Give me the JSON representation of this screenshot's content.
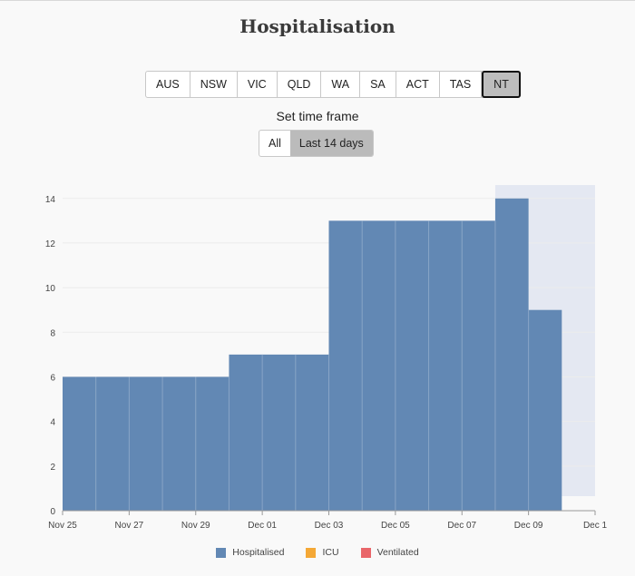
{
  "title": "Hospitalisation",
  "regions": [
    "AUS",
    "NSW",
    "VIC",
    "QLD",
    "WA",
    "SA",
    "ACT",
    "TAS",
    "NT"
  ],
  "active_region": "NT",
  "timeframe": {
    "label": "Set time frame",
    "options": [
      "All",
      "Last 14 days"
    ],
    "active": "Last 14 days"
  },
  "legend": [
    {
      "name": "Hospitalised",
      "color": "#6288b4"
    },
    {
      "name": "ICU",
      "color": "#f4a836"
    },
    {
      "name": "Ventilated",
      "color": "#e9666a"
    }
  ],
  "chart_data": {
    "type": "bar",
    "x": [
      "Nov 25",
      "Nov 26",
      "Nov 27",
      "Nov 28",
      "Nov 29",
      "Nov 30",
      "Dec 01",
      "Dec 02",
      "Dec 03",
      "Dec 04",
      "Dec 05",
      "Dec 06",
      "Dec 07",
      "Dec 08",
      "Dec 09"
    ],
    "series": [
      {
        "name": "Hospitalised",
        "color": "#6288b4",
        "values": [
          6,
          6,
          6,
          6,
          6,
          7,
          7,
          7,
          13,
          13,
          13,
          13,
          13,
          14,
          9
        ]
      }
    ],
    "x_ticks": [
      "Nov 25",
      "Nov 27",
      "Nov 29",
      "Dec 01",
      "Dec 03",
      "Dec 05",
      "Dec 07",
      "Dec 09",
      "Dec 1"
    ],
    "y_ticks": [
      0,
      2,
      4,
      6,
      8,
      10,
      12,
      14
    ],
    "ylim": [
      0,
      14.6
    ],
    "highlight_band": {
      "from_index": 13,
      "to_index": 16,
      "color": "#e4e8f2"
    },
    "grid": true
  }
}
